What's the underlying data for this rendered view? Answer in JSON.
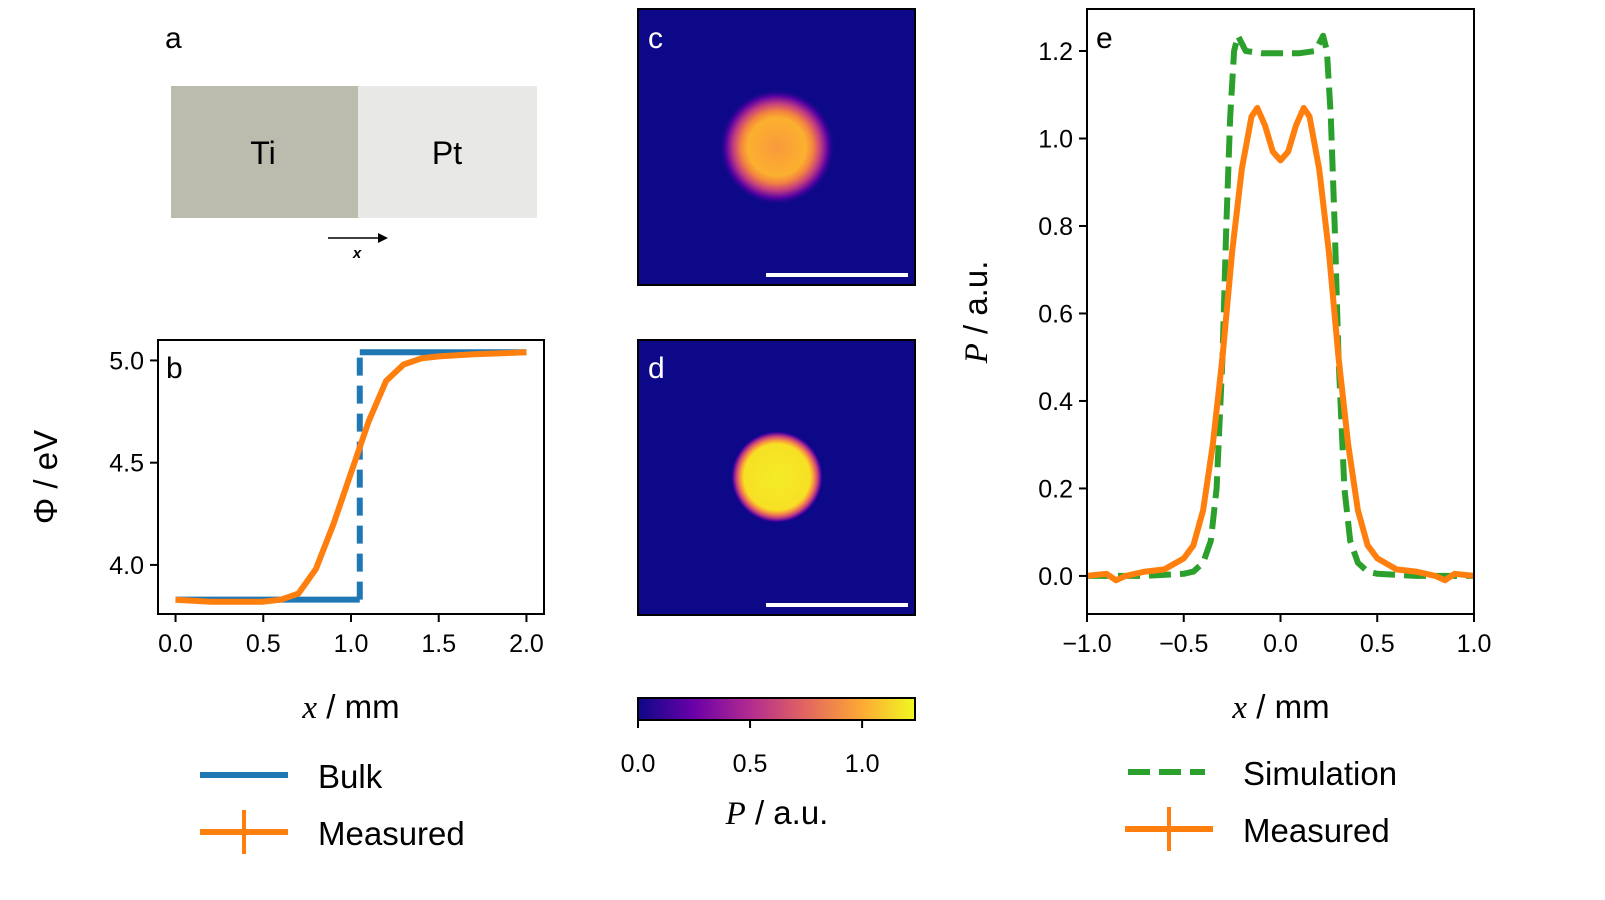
{
  "panel_a": {
    "label": "a",
    "left_material": "Ti",
    "right_material": "Pt",
    "axis_symbol": "x",
    "colors": {
      "Ti": "#bbbcae",
      "Pt": "#e8e8e6"
    }
  },
  "chart_data": [
    {
      "panel": "b",
      "type": "line",
      "xlabel_var": "x",
      "xlabel_unit": " / mm",
      "ylabel": "Φ / eV",
      "xlim": [
        -0.1,
        2.1
      ],
      "ylim": [
        3.76,
        5.1
      ],
      "xticks": [
        0.0,
        0.5,
        1.0,
        1.5,
        2.0
      ],
      "xtick_labels": [
        "0.0",
        "0.5",
        "1.0",
        "1.5",
        "2.0"
      ],
      "yticks": [
        4.0,
        4.5,
        5.0
      ],
      "ytick_labels": [
        "4.0",
        "4.5",
        "5.0"
      ],
      "grid": false,
      "legend_placement": "below",
      "series": [
        {
          "name": "Bulk",
          "color": "#1f77b4",
          "style": "solid",
          "x": [
            0.0,
            1.05,
            1.05,
            2.0
          ],
          "y": [
            3.83,
            3.83,
            5.04,
            5.04
          ]
        },
        {
          "name": "Measured",
          "color": "#ff7f0e",
          "style": "solid-errorbar",
          "x": [
            0.0,
            0.2,
            0.4,
            0.5,
            0.6,
            0.7,
            0.8,
            0.9,
            1.0,
            1.1,
            1.2,
            1.3,
            1.4,
            1.5,
            1.7,
            2.0
          ],
          "y": [
            3.83,
            3.82,
            3.82,
            3.82,
            3.83,
            3.86,
            3.98,
            4.2,
            4.45,
            4.7,
            4.9,
            4.98,
            5.01,
            5.02,
            5.03,
            5.04
          ]
        }
      ]
    },
    {
      "panel": "c",
      "type": "heatmap",
      "description_shape": "ring",
      "scale_bar": true
    },
    {
      "panel": "d",
      "type": "heatmap",
      "description_shape": "disk",
      "scale_bar": true
    },
    {
      "panel": "colorbar",
      "type": "colorbar",
      "colormap": "plasma",
      "range": [
        0.0,
        1.236
      ],
      "ticks": [
        0.0,
        0.5,
        1.0
      ],
      "tick_labels": [
        "0.0",
        "0.5",
        "1.0"
      ],
      "label_var": "P",
      "label_unit": " / a.u."
    },
    {
      "panel": "e",
      "type": "line",
      "xlabel_var": "x",
      "xlabel_unit": " / mm",
      "ylabel_var": "P",
      "ylabel_unit": " / a.u.",
      "xlim": [
        -1.0,
        1.0
      ],
      "ylim": [
        -0.087,
        1.296
      ],
      "xticks": [
        -1.0,
        -0.5,
        0.0,
        0.5,
        1.0
      ],
      "xtick_labels": [
        "−1.0",
        "−0.5",
        "0.0",
        "0.5",
        "1.0"
      ],
      "yticks": [
        0.0,
        0.2,
        0.4,
        0.6,
        0.8,
        1.0,
        1.2
      ],
      "ytick_labels": [
        "0.0",
        "0.2",
        "0.4",
        "0.6",
        "0.8",
        "1.0",
        "1.2"
      ],
      "grid": false,
      "legend_placement": "below",
      "series": [
        {
          "name": "Simulation",
          "color": "#2ca02c",
          "style": "dashed",
          "x": [
            -1.0,
            -0.7,
            -0.5,
            -0.45,
            -0.4,
            -0.36,
            -0.33,
            -0.3,
            -0.28,
            -0.26,
            -0.24,
            -0.22,
            -0.18,
            -0.1,
            0.0,
            0.1,
            0.18,
            0.22,
            0.24,
            0.26,
            0.28,
            0.3,
            0.33,
            0.36,
            0.4,
            0.45,
            0.5,
            0.7,
            1.0
          ],
          "y": [
            0.0,
            0.0,
            0.005,
            0.01,
            0.03,
            0.08,
            0.2,
            0.5,
            0.8,
            1.05,
            1.2,
            1.235,
            1.2,
            1.195,
            1.195,
            1.195,
            1.2,
            1.235,
            1.2,
            1.05,
            0.8,
            0.5,
            0.2,
            0.08,
            0.03,
            0.01,
            0.005,
            0.0,
            0.0
          ]
        },
        {
          "name": "Measured",
          "color": "#ff7f0e",
          "style": "solid-errorbar",
          "x": [
            -1.0,
            -0.9,
            -0.85,
            -0.8,
            -0.7,
            -0.6,
            -0.5,
            -0.45,
            -0.4,
            -0.35,
            -0.3,
            -0.25,
            -0.2,
            -0.15,
            -0.12,
            -0.08,
            -0.04,
            0.0,
            0.04,
            0.08,
            0.12,
            0.15,
            0.2,
            0.25,
            0.3,
            0.35,
            0.4,
            0.45,
            0.5,
            0.6,
            0.7,
            0.8,
            0.85,
            0.9,
            1.0
          ],
          "y": [
            0.0,
            0.005,
            -0.01,
            0.0,
            0.01,
            0.015,
            0.04,
            0.07,
            0.15,
            0.3,
            0.5,
            0.74,
            0.93,
            1.05,
            1.07,
            1.03,
            0.97,
            0.95,
            0.97,
            1.03,
            1.07,
            1.05,
            0.93,
            0.74,
            0.5,
            0.3,
            0.15,
            0.07,
            0.04,
            0.015,
            0.01,
            0.0,
            -0.01,
            0.005,
            0.0
          ]
        }
      ]
    }
  ],
  "panel_labels": {
    "b": "b",
    "c": "c",
    "d": "d",
    "e": "e"
  }
}
